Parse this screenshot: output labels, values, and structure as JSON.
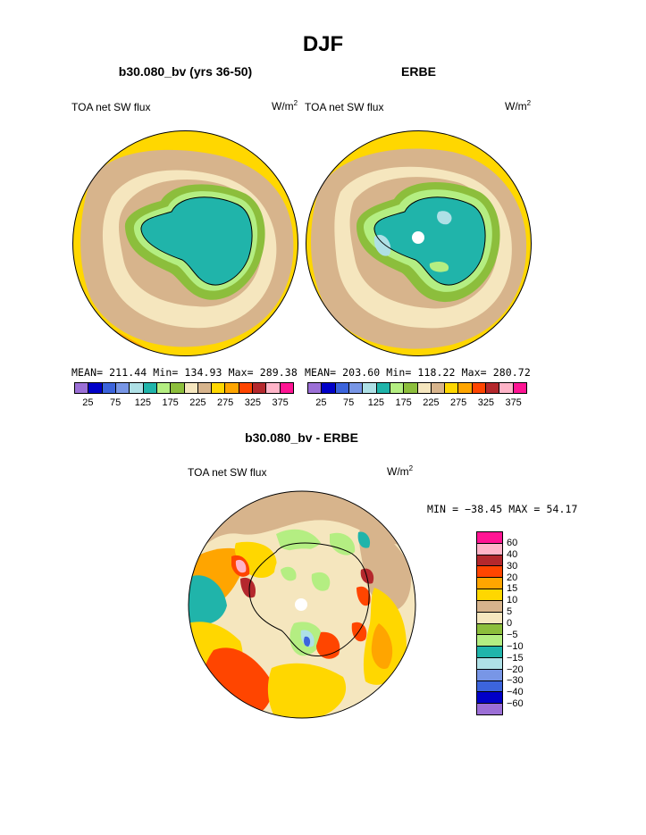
{
  "page": {
    "title": "DJF"
  },
  "panels": [
    {
      "id": "model",
      "title": "b30.080_bv (yrs 36-50)",
      "left_label": "TOA net SW flux",
      "unit_base": "W/m",
      "unit_sup": "2",
      "stats": "MEAN= 211.44  Min= 134.93  Max= 289.38",
      "colorbar_ticks": [
        "25",
        "75",
        "125",
        "175",
        "225",
        "275",
        "325",
        "375"
      ]
    },
    {
      "id": "obs",
      "title": "ERBE",
      "left_label": "TOA net SW flux",
      "unit_base": "W/m",
      "unit_sup": "2",
      "stats": "MEAN= 203.60  Min= 118.22  Max= 280.72",
      "colorbar_ticks": [
        "25",
        "75",
        "125",
        "175",
        "225",
        "275",
        "325",
        "375"
      ]
    }
  ],
  "diff": {
    "title": "b30.080_bv - ERBE",
    "left_label": "TOA net SW flux",
    "unit_base": "W/m",
    "unit_sup": "2",
    "stats": "MIN = −38.45  MAX =   54.17",
    "colorbar_ticks": [
      "60",
      "40",
      "30",
      "20",
      "15",
      "10",
      "5",
      "0",
      "−5",
      "−10",
      "−15",
      "−20",
      "−30",
      "−40",
      "−60"
    ]
  },
  "colors": {
    "abs_scale": [
      "#9b6fd6",
      "#0000c8",
      "#3c64dc",
      "#7896e6",
      "#aee0e6",
      "#20b4aa",
      "#b4ee82",
      "#8cbe3c",
      "#f5e6be",
      "#d7b48c",
      "#ffd700",
      "#ffa500",
      "#ff4500",
      "#b4282d",
      "#ffb4c8",
      "#ff1493"
    ],
    "diff_scale": [
      "#ff1493",
      "#ffb4c8",
      "#b4282d",
      "#ff4500",
      "#ffa500",
      "#ffd700",
      "#d7b48c",
      "#f5e6be",
      "#8cbe3c",
      "#b4ee82",
      "#20b4aa",
      "#aee0e6",
      "#7896e6",
      "#3c64dc",
      "#0000c8",
      "#9b6fd6"
    ]
  }
}
